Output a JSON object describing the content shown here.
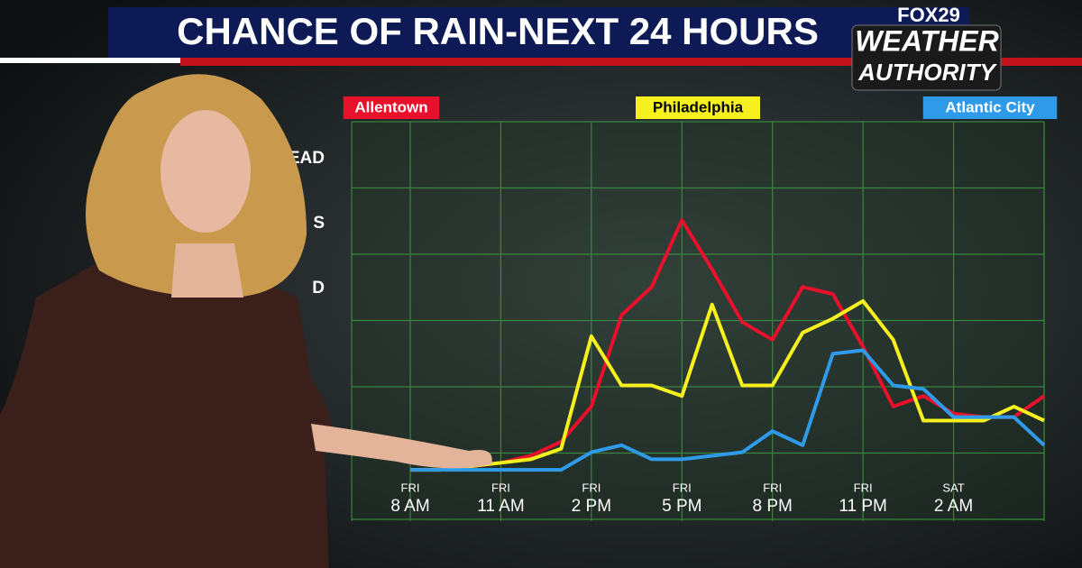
{
  "chart_data": {
    "type": "line",
    "title": "CHANCE OF RAIN-NEXT 24 HOURS",
    "brand": {
      "station": "FOX29",
      "line1": "WEATHER",
      "line2": "AUTHORITY"
    },
    "left_labels": [
      "EAD",
      "S",
      "D"
    ],
    "categories": [
      "8 AM",
      null,
      null,
      "11 AM",
      null,
      null,
      "2 PM",
      null,
      null,
      "5 PM",
      null,
      null,
      "8 PM",
      null,
      null,
      "11 PM",
      null,
      null,
      "2 AM",
      null,
      null,
      null
    ],
    "days": [
      "FRI",
      null,
      null,
      "FRI",
      null,
      null,
      "FRI",
      null,
      null,
      "FRI",
      null,
      null,
      "FRI",
      null,
      null,
      "FRI",
      null,
      null,
      "SAT",
      null,
      null,
      null
    ],
    "ylim": [
      0,
      100
    ],
    "series": [
      {
        "name": "Allentown",
        "color": "#e8102a",
        "text_color": "#ffffff",
        "values": [
          1,
          1,
          2,
          3,
          5,
          9,
          19,
          45,
          53,
          72,
          58,
          43,
          38,
          53,
          51,
          36,
          19,
          22,
          17,
          16,
          16,
          22
        ]
      },
      {
        "name": "Philadelphia",
        "color": "#f5f01e",
        "text_color": "#000000",
        "values": [
          1,
          1,
          2,
          3,
          4,
          7,
          39,
          25,
          25,
          22,
          48,
          25,
          25,
          40,
          44,
          49,
          38,
          15,
          15,
          15,
          19,
          15
        ]
      },
      {
        "name": "Atlantic City",
        "color": "#2f9be8",
        "text_color": "#ffffff",
        "values": [
          1,
          1,
          1,
          1,
          1,
          1,
          6,
          8,
          4,
          4,
          5,
          6,
          12,
          8,
          34,
          35,
          25,
          24,
          16,
          16,
          16,
          8
        ]
      }
    ]
  }
}
